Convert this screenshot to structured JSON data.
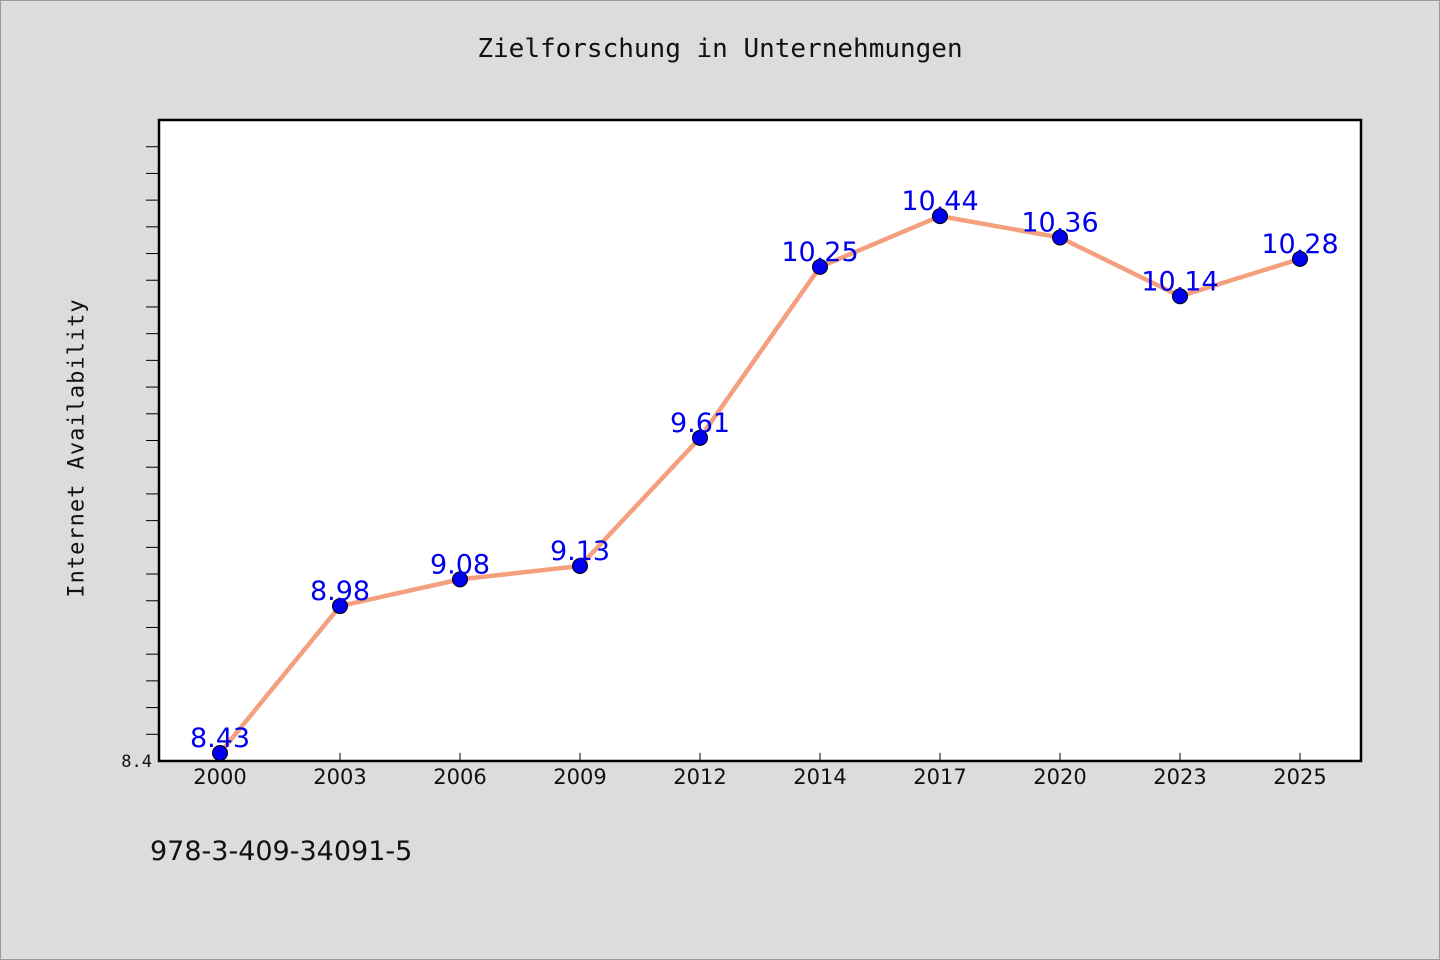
{
  "chart_data": {
    "type": "line",
    "title": "Zielforschung in Unternehmungen",
    "xlabel": "",
    "ylabel": "Internet Availability",
    "categories": [
      "2000",
      "2003",
      "2006",
      "2009",
      "2012",
      "2014",
      "2017",
      "2020",
      "2023",
      "2025"
    ],
    "series": [
      {
        "values": [
          8.43,
          8.98,
          9.08,
          9.13,
          9.61,
          10.25,
          10.44,
          10.36,
          10.14,
          10.28
        ],
        "data_labels": [
          "8.43",
          "8.98",
          "9.08",
          "9.13",
          "9.61",
          "10.25",
          "10.44",
          "10.36",
          "10.14",
          "10.28"
        ]
      }
    ],
    "ylim": [
      8.4,
      10.8
    ],
    "y_tick_labels": [
      "8.4"
    ],
    "grid": false,
    "legend": "none",
    "colors": {
      "line": "#f4a07e",
      "marker": "#0000ee",
      "data_label": "#0000ee",
      "plot_background": "#ffffff",
      "figure_background": "#dcdcdc"
    }
  },
  "footer": {
    "isbn": "978-3-409-34091-5"
  }
}
